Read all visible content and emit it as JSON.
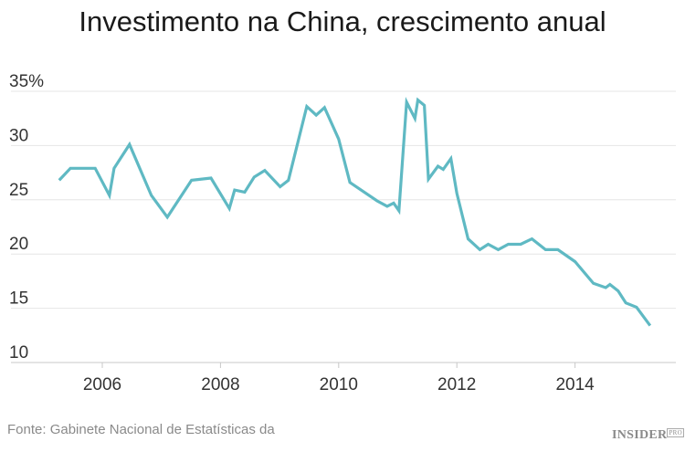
{
  "chart_data": {
    "type": "line",
    "title": "Investimento na China, crescimento anual",
    "xlabel": "",
    "ylabel": "",
    "xlim": [
      2005.0,
      2015.6
    ],
    "ylim": [
      10,
      35
    ],
    "x_ticks": [
      2006,
      2008,
      2010,
      2012,
      2014
    ],
    "x_tick_labels": [
      "2006",
      "2008",
      "2010",
      "2012",
      "2014"
    ],
    "y_ticks": [
      10,
      15,
      20,
      25,
      30,
      35
    ],
    "y_tick_labels": [
      "10",
      "15",
      "20",
      "25",
      "30",
      "35%"
    ],
    "grid": "horizontal",
    "color": "#5fb9c3",
    "series": [
      {
        "x": [
          2005.27,
          2005.46,
          2005.88,
          2006.12,
          2006.2,
          2006.46,
          2006.83,
          2007.1,
          2007.51,
          2007.84,
          2008.15,
          2008.24,
          2008.41,
          2008.57,
          2008.75,
          2009.01,
          2009.15,
          2009.46,
          2009.62,
          2009.76,
          2010.0,
          2010.19,
          2010.65,
          2010.82,
          2010.93,
          2011.02,
          2011.15,
          2011.29,
          2011.34,
          2011.45,
          2011.52,
          2011.68,
          2011.77,
          2011.9,
          2012.0,
          2012.19,
          2012.39,
          2012.53,
          2012.7,
          2012.87,
          2013.08,
          2013.27,
          2013.5,
          2013.71,
          2014.0,
          2014.31,
          2014.52,
          2014.59,
          2014.73,
          2014.86,
          2015.04,
          2015.27
        ],
        "y": [
          26.8,
          27.9,
          27.9,
          25.4,
          27.9,
          30.1,
          25.4,
          23.4,
          26.8,
          27.0,
          24.2,
          25.9,
          25.7,
          27.1,
          27.7,
          26.2,
          26.8,
          33.6,
          32.8,
          33.5,
          30.6,
          26.6,
          24.9,
          24.4,
          24.7,
          24.0,
          34.0,
          32.5,
          34.2,
          33.7,
          26.9,
          28.1,
          27.8,
          28.8,
          25.6,
          21.4,
          20.4,
          20.9,
          20.4,
          20.9,
          20.9,
          21.4,
          20.4,
          20.4,
          19.3,
          17.3,
          16.9,
          17.2,
          16.6,
          15.5,
          15.1,
          13.4
        ]
      }
    ]
  },
  "source": "Fonte: Gabinete Nacional de Estatísticas da",
  "logo": {
    "text": "INSIDER",
    "sup": "PRO"
  }
}
